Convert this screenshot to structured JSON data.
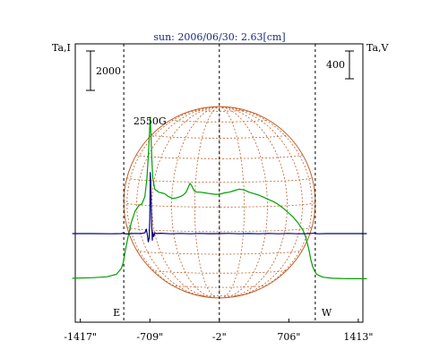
{
  "chart_data": {
    "type": "line",
    "title": "sun: 2006/06/30: 2.63[cm]",
    "left_axis_label": "Ta,I",
    "right_axis_label": "Ta,V",
    "left_scale_bar": {
      "value": 2000,
      "label": "2000"
    },
    "right_scale_bar": {
      "value": 400,
      "label": "400"
    },
    "x_unit": "arcsec",
    "xlim": [
      -1500,
      1500
    ],
    "x_ticks": [
      {
        "value": -1417,
        "label": "-1417\""
      },
      {
        "value": -709,
        "label": "-709\""
      },
      {
        "value": -2,
        "label": "-2\""
      },
      {
        "value": 706,
        "label": "706\""
      },
      {
        "value": 1413,
        "label": "1413\""
      }
    ],
    "limb_markers": [
      {
        "value": -975,
        "label": "E"
      },
      {
        "value": -2,
        "label": ""
      },
      {
        "value": 975,
        "label": "W"
      }
    ],
    "annotations": [
      {
        "text": "2550G",
        "x": -709
      }
    ],
    "grid": false,
    "series": [
      {
        "color": "#00a000",
        "role": "Stokes I (Ta,I)",
        "x": [
          -1500,
          -1300,
          -1150,
          -1050,
          -1000,
          -980,
          -960,
          -930,
          -900,
          -860,
          -820,
          -790,
          -760,
          -740,
          -725,
          -712,
          -705,
          -698,
          -690,
          -680,
          -660,
          -640,
          -620,
          -590,
          -560,
          -520,
          -480,
          -440,
          -400,
          -370,
          -340,
          -320,
          -300,
          -280,
          -260,
          -230,
          -200,
          -150,
          -100,
          -50,
          0,
          50,
          100,
          150,
          200,
          250,
          300,
          350,
          400,
          450,
          500,
          550,
          600,
          650,
          700,
          750,
          800,
          850,
          880,
          910,
          930,
          950,
          970,
          990,
          1020,
          1060,
          1150,
          1300,
          1500
        ],
        "y": [
          430,
          470,
          530,
          700,
          1100,
          1500,
          2300,
          3300,
          4200,
          5000,
          5400,
          5500,
          6000,
          7200,
          8700,
          10600,
          11400,
          10200,
          8600,
          7300,
          6500,
          6400,
          6300,
          6250,
          6200,
          6000,
          5880,
          5900,
          6000,
          6100,
          6300,
          6600,
          6900,
          6700,
          6400,
          6300,
          6300,
          6250,
          6200,
          6150,
          6150,
          6250,
          6300,
          6400,
          6500,
          6450,
          6300,
          6200,
          6100,
          5950,
          5800,
          5650,
          5450,
          5200,
          4900,
          4600,
          4200,
          3700,
          3200,
          2400,
          1700,
          1200,
          900,
          700,
          600,
          500,
          430,
          400,
          400
        ]
      },
      {
        "color": "#000080",
        "role": "Stokes V (Ta,V)",
        "x": [
          -1500,
          -1300,
          -1100,
          -1000,
          -975,
          -955,
          -900,
          -850,
          -800,
          -760,
          -745,
          -735,
          -725,
          -716,
          -710,
          -705,
          -700,
          -696,
          -690,
          -684,
          -680,
          -670,
          -660,
          -640,
          -600,
          -500,
          -400,
          -300,
          -200,
          -100,
          0,
          100,
          200,
          300,
          400,
          500,
          600,
          700,
          800,
          900,
          950,
          970,
          985,
          1000,
          1100,
          1300,
          1500
        ],
        "y": [
          0,
          0,
          -2,
          0,
          10,
          -5,
          0,
          3,
          0,
          10,
          60,
          -10,
          -110,
          -60,
          200,
          820,
          700,
          420,
          100,
          -90,
          20,
          -40,
          10,
          0,
          5,
          -2,
          3,
          -2,
          2,
          -1,
          0,
          2,
          -2,
          1,
          -2,
          2,
          -3,
          2,
          -3,
          0,
          4,
          10,
          0,
          -3,
          0,
          0,
          0
        ]
      }
    ],
    "overlay": {
      "type": "solar_disk_grid",
      "color": "#c0602a",
      "radius_arcsec": 975,
      "center_arcsec": [
        0,
        0
      ]
    }
  }
}
